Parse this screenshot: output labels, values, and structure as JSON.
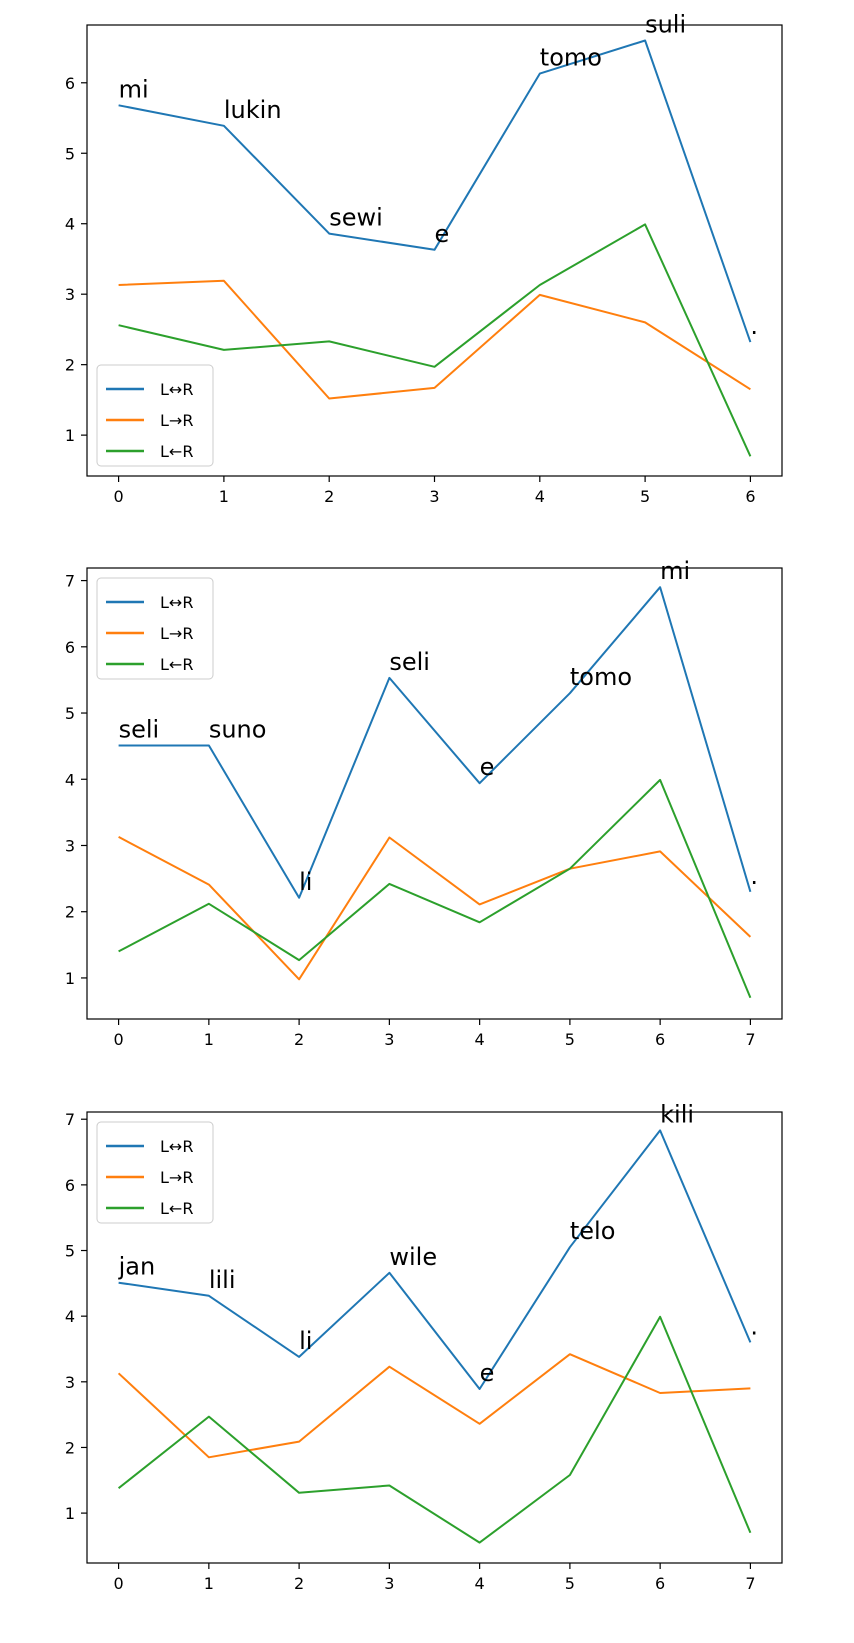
{
  "chart_data": [
    {
      "type": "line",
      "title": "",
      "xlabel": "",
      "ylabel": "",
      "x": [
        0,
        1,
        2,
        3,
        4,
        5,
        6
      ],
      "xlim": [
        -0.3,
        6.3
      ],
      "ylim": [
        0.42,
        6.82
      ],
      "yticks": [
        1,
        2,
        3,
        4,
        5,
        6
      ],
      "tokens": [
        "mi",
        "lukin",
        "sewi",
        "e",
        "tomo",
        "suli",
        "."
      ],
      "legend_position": "lower left",
      "grid": false,
      "series": [
        {
          "name": "L↔R",
          "color": "#1f77b4",
          "values": [
            5.68,
            5.39,
            3.86,
            3.63,
            6.13,
            6.6,
            2.32
          ]
        },
        {
          "name": "L→R",
          "color": "#ff7f0e",
          "values": [
            3.13,
            3.19,
            1.52,
            1.67,
            2.99,
            2.6,
            1.65
          ]
        },
        {
          "name": "L←R",
          "color": "#2ca02c",
          "values": [
            2.56,
            2.21,
            2.33,
            1.97,
            3.13,
            3.99,
            0.7
          ]
        }
      ]
    },
    {
      "type": "line",
      "title": "",
      "xlabel": "",
      "ylabel": "",
      "x": [
        0,
        1,
        2,
        3,
        4,
        5,
        6,
        7
      ],
      "xlim": [
        -0.35,
        7.35
      ],
      "ylim": [
        0.38,
        7.19
      ],
      "yticks": [
        1,
        2,
        3,
        4,
        5,
        6,
        7
      ],
      "tokens": [
        "seli",
        "suno",
        "li",
        "seli",
        "e",
        "tomo",
        "mi",
        "."
      ],
      "legend_position": "upper left",
      "grid": false,
      "series": [
        {
          "name": "L↔R",
          "color": "#1f77b4",
          "values": [
            4.51,
            4.51,
            2.21,
            5.53,
            3.94,
            5.3,
            6.9,
            2.3
          ]
        },
        {
          "name": "L→R",
          "color": "#ff7f0e",
          "values": [
            3.13,
            2.41,
            0.98,
            3.12,
            2.11,
            2.65,
            2.91,
            1.62
          ]
        },
        {
          "name": "L←R",
          "color": "#2ca02c",
          "values": [
            1.4,
            2.12,
            1.27,
            2.42,
            1.84,
            2.65,
            3.99,
            0.7
          ]
        }
      ]
    },
    {
      "type": "line",
      "title": "",
      "xlabel": "",
      "ylabel": "",
      "x": [
        0,
        1,
        2,
        3,
        4,
        5,
        6,
        7
      ],
      "xlim": [
        -0.35,
        7.35
      ],
      "ylim": [
        0.24,
        7.11
      ],
      "yticks": [
        1,
        2,
        3,
        4,
        5,
        6,
        7
      ],
      "tokens": [
        "jan",
        "lili",
        "li",
        "wile",
        "e",
        "telo",
        "kili",
        "."
      ],
      "legend_position": "upper left",
      "grid": false,
      "series": [
        {
          "name": "L↔R",
          "color": "#1f77b4",
          "values": [
            4.51,
            4.31,
            3.38,
            4.66,
            2.89,
            5.05,
            6.83,
            3.6
          ]
        },
        {
          "name": "L→R",
          "color": "#ff7f0e",
          "values": [
            3.13,
            1.85,
            2.09,
            3.23,
            2.36,
            3.42,
            2.83,
            2.9
          ]
        },
        {
          "name": "L←R",
          "color": "#2ca02c",
          "values": [
            1.38,
            2.47,
            1.31,
            1.42,
            0.55,
            1.58,
            3.99,
            0.7
          ]
        }
      ]
    }
  ]
}
